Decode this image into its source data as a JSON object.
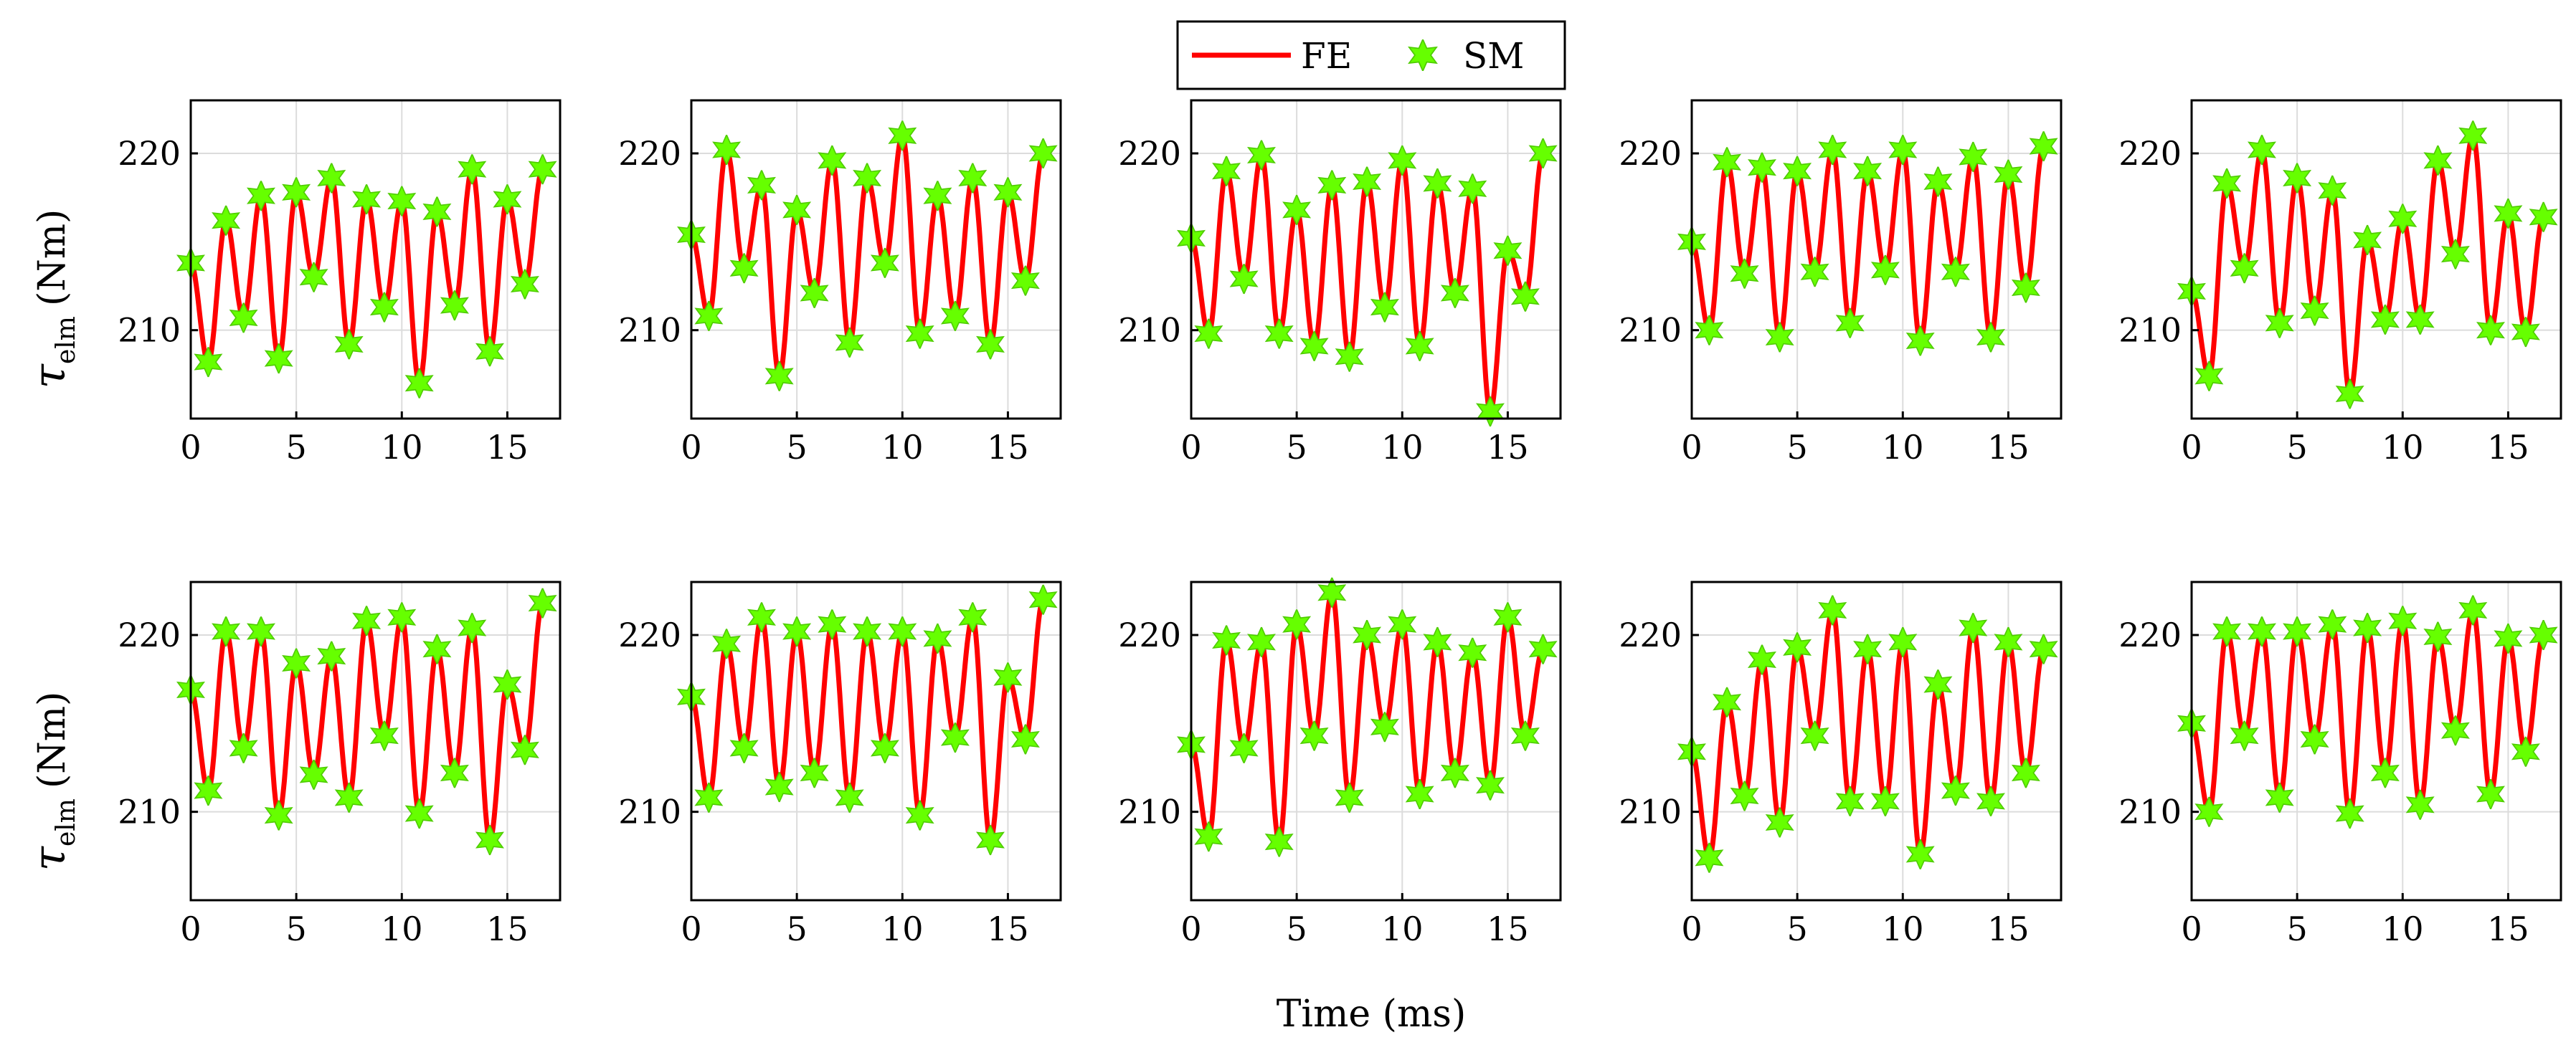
{
  "figure": {
    "xlabel": "Time (ms)",
    "ylabel_symbol": "τ",
    "ylabel_subscript": "elm",
    "ylabel_unit": "(Nm)",
    "legend": [
      {
        "label": "FE",
        "marker": "line",
        "color": "#ff0000"
      },
      {
        "label": "SM",
        "marker": "hexagram",
        "color": "#66ff00"
      }
    ],
    "colors": {
      "fe": "#ff0000",
      "sm": "#66ff00",
      "sm_edge": "#4fcc00",
      "grid": "#dcdcdc"
    }
  },
  "chart_data": [
    {
      "type": "line",
      "panel": "row1-col1",
      "xlim": [
        0,
        17.5
      ],
      "ylim": [
        205,
        223
      ],
      "xticks": [
        0,
        5,
        10,
        15
      ],
      "yticks": [
        210,
        220
      ],
      "grid": true,
      "x": [
        0,
        0.83,
        1.67,
        2.5,
        3.33,
        4.17,
        5,
        5.83,
        6.67,
        7.5,
        8.33,
        9.17,
        10,
        10.83,
        11.67,
        12.5,
        13.33,
        14.17,
        15,
        15.83,
        16.67
      ],
      "series": [
        {
          "name": "FE",
          "values": [
            213.8,
            208.2,
            216.2,
            210.7,
            217.6,
            208.4,
            217.8,
            213.0,
            218.6,
            209.2,
            217.4,
            211.3,
            217.3,
            207.0,
            216.7,
            211.4,
            219.1,
            208.8,
            217.4,
            212.6,
            219.1
          ]
        },
        {
          "name": "SM",
          "values": [
            213.8,
            208.2,
            216.2,
            210.7,
            217.6,
            208.4,
            217.8,
            213.0,
            218.6,
            209.2,
            217.4,
            211.3,
            217.3,
            207.0,
            216.7,
            211.4,
            219.1,
            208.8,
            217.4,
            212.6,
            219.1
          ]
        }
      ]
    },
    {
      "type": "line",
      "panel": "row1-col2",
      "xlim": [
        0,
        17.5
      ],
      "ylim": [
        205,
        223
      ],
      "xticks": [
        0,
        5,
        10,
        15
      ],
      "yticks": [
        210,
        220
      ],
      "grid": true,
      "x": [
        0,
        0.83,
        1.67,
        2.5,
        3.33,
        4.17,
        5,
        5.83,
        6.67,
        7.5,
        8.33,
        9.17,
        10,
        10.83,
        11.67,
        12.5,
        13.33,
        14.17,
        15,
        15.83,
        16.67
      ],
      "series": [
        {
          "name": "FE",
          "values": [
            215.4,
            210.8,
            220.2,
            213.5,
            218.2,
            207.4,
            216.8,
            212.1,
            219.6,
            209.3,
            218.6,
            213.8,
            221.0,
            209.8,
            217.6,
            210.8,
            218.6,
            209.2,
            217.8,
            212.8,
            220.0
          ]
        },
        {
          "name": "SM",
          "values": [
            215.4,
            210.8,
            220.2,
            213.5,
            218.2,
            207.4,
            216.8,
            212.1,
            219.6,
            209.3,
            218.6,
            213.8,
            221.0,
            209.8,
            217.6,
            210.8,
            218.6,
            209.2,
            217.8,
            212.8,
            220.0
          ]
        }
      ]
    },
    {
      "type": "line",
      "panel": "row1-col3",
      "xlim": [
        0,
        17.5
      ],
      "ylim": [
        205,
        223
      ],
      "xticks": [
        0,
        5,
        10,
        15
      ],
      "yticks": [
        210,
        220
      ],
      "grid": true,
      "x": [
        0,
        0.83,
        1.67,
        2.5,
        3.33,
        4.17,
        5,
        5.83,
        6.67,
        7.5,
        8.33,
        9.17,
        10,
        10.83,
        11.67,
        12.5,
        13.33,
        14.17,
        15,
        15.83,
        16.67
      ],
      "series": [
        {
          "name": "FE",
          "values": [
            215.2,
            209.8,
            219.0,
            212.9,
            219.9,
            209.8,
            216.8,
            209.1,
            218.2,
            208.5,
            218.4,
            211.3,
            219.6,
            209.1,
            218.3,
            212.1,
            218.0,
            205.4,
            214.5,
            211.9,
            220.0
          ]
        },
        {
          "name": "SM",
          "values": [
            215.2,
            209.8,
            219.0,
            212.9,
            219.9,
            209.8,
            216.8,
            209.1,
            218.2,
            208.5,
            218.4,
            211.3,
            219.6,
            209.1,
            218.3,
            212.1,
            218.0,
            205.4,
            214.5,
            211.9,
            220.0
          ]
        }
      ]
    },
    {
      "type": "line",
      "panel": "row1-col4",
      "xlim": [
        0,
        17.5
      ],
      "ylim": [
        205,
        223
      ],
      "xticks": [
        0,
        5,
        10,
        15
      ],
      "yticks": [
        210,
        220
      ],
      "grid": true,
      "x": [
        0,
        0.83,
        1.67,
        2.5,
        3.33,
        4.17,
        5,
        5.83,
        6.67,
        7.5,
        8.33,
        9.17,
        10,
        10.83,
        11.67,
        12.5,
        13.33,
        14.17,
        15,
        15.83,
        16.67
      ],
      "series": [
        {
          "name": "FE",
          "values": [
            215.0,
            210.0,
            219.5,
            213.2,
            219.2,
            209.6,
            219.0,
            213.3,
            220.2,
            210.4,
            219.0,
            213.4,
            220.2,
            209.4,
            218.4,
            213.3,
            219.8,
            209.6,
            218.8,
            212.4,
            220.4
          ]
        },
        {
          "name": "SM",
          "values": [
            215.0,
            210.0,
            219.5,
            213.2,
            219.2,
            209.6,
            219.0,
            213.3,
            220.2,
            210.4,
            219.0,
            213.4,
            220.2,
            209.4,
            218.4,
            213.3,
            219.8,
            209.6,
            218.8,
            212.4,
            220.4
          ]
        }
      ]
    },
    {
      "type": "line",
      "panel": "row1-col5",
      "xlim": [
        0,
        17.5
      ],
      "ylim": [
        205,
        223
      ],
      "xticks": [
        0,
        5,
        10,
        15
      ],
      "yticks": [
        210,
        220
      ],
      "grid": true,
      "x": [
        0,
        0.83,
        1.67,
        2.5,
        3.33,
        4.17,
        5,
        5.83,
        6.67,
        7.5,
        8.33,
        9.17,
        10,
        10.83,
        11.67,
        12.5,
        13.33,
        14.17,
        15,
        15.83,
        16.67
      ],
      "series": [
        {
          "name": "FE",
          "values": [
            212.2,
            207.4,
            218.3,
            213.5,
            220.2,
            210.4,
            218.6,
            211.1,
            217.9,
            206.4,
            215.1,
            210.6,
            216.3,
            210.6,
            219.6,
            214.3,
            221.0,
            210.0,
            216.6,
            209.9,
            216.4
          ]
        },
        {
          "name": "SM",
          "values": [
            212.2,
            207.4,
            218.3,
            213.5,
            220.2,
            210.4,
            218.6,
            211.1,
            217.9,
            206.4,
            215.1,
            210.6,
            216.3,
            210.6,
            219.6,
            214.3,
            221.0,
            210.0,
            216.6,
            209.9,
            216.4
          ]
        }
      ]
    },
    {
      "type": "line",
      "panel": "row2-col1",
      "xlim": [
        0,
        17.5
      ],
      "ylim": [
        205,
        223
      ],
      "xticks": [
        0,
        5,
        10,
        15
      ],
      "yticks": [
        210,
        220
      ],
      "grid": true,
      "x": [
        0,
        0.83,
        1.67,
        2.5,
        3.33,
        4.17,
        5,
        5.83,
        6.67,
        7.5,
        8.33,
        9.17,
        10,
        10.83,
        11.67,
        12.5,
        13.33,
        14.17,
        15,
        15.83,
        16.67
      ],
      "series": [
        {
          "name": "FE",
          "values": [
            216.9,
            211.2,
            220.2,
            213.6,
            220.2,
            209.8,
            218.4,
            212.1,
            218.8,
            210.8,
            220.8,
            214.3,
            221.0,
            209.9,
            219.2,
            212.2,
            220.4,
            208.4,
            217.2,
            213.5,
            221.8
          ]
        },
        {
          "name": "SM",
          "values": [
            216.9,
            211.2,
            220.2,
            213.6,
            220.2,
            209.8,
            218.4,
            212.1,
            218.8,
            210.8,
            220.8,
            214.3,
            221.0,
            209.9,
            219.2,
            212.2,
            220.4,
            208.4,
            217.2,
            213.5,
            221.8
          ]
        }
      ]
    },
    {
      "type": "line",
      "panel": "row2-col2",
      "xlim": [
        0,
        17.5
      ],
      "ylim": [
        205,
        223
      ],
      "xticks": [
        0,
        5,
        10,
        15
      ],
      "yticks": [
        210,
        220
      ],
      "grid": true,
      "x": [
        0,
        0.83,
        1.67,
        2.5,
        3.33,
        4.17,
        5,
        5.83,
        6.67,
        7.5,
        8.33,
        9.17,
        10,
        10.83,
        11.67,
        12.5,
        13.33,
        14.17,
        15,
        15.83,
        16.67
      ],
      "series": [
        {
          "name": "FE",
          "values": [
            216.5,
            210.8,
            219.5,
            213.6,
            221.0,
            211.4,
            220.2,
            212.2,
            220.6,
            210.8,
            220.2,
            213.6,
            220.2,
            209.8,
            219.8,
            214.2,
            221.0,
            208.4,
            217.6,
            214.1,
            222.0
          ]
        },
        {
          "name": "SM",
          "values": [
            216.5,
            210.8,
            219.5,
            213.6,
            221.0,
            211.4,
            220.2,
            212.2,
            220.6,
            210.8,
            220.2,
            213.6,
            220.2,
            209.8,
            219.8,
            214.2,
            221.0,
            208.4,
            217.6,
            214.1,
            222.0
          ]
        }
      ]
    },
    {
      "type": "line",
      "panel": "row2-col3",
      "xlim": [
        0,
        17.5
      ],
      "ylim": [
        205,
        223
      ],
      "xticks": [
        0,
        5,
        10,
        15
      ],
      "yticks": [
        210,
        220
      ],
      "grid": true,
      "x": [
        0,
        0.83,
        1.67,
        2.5,
        3.33,
        4.17,
        5,
        5.83,
        6.67,
        7.5,
        8.33,
        9.17,
        10,
        10.83,
        11.67,
        12.5,
        13.33,
        14.17,
        15,
        15.83,
        16.67
      ],
      "series": [
        {
          "name": "FE",
          "values": [
            213.8,
            208.6,
            219.7,
            213.6,
            219.6,
            208.3,
            220.6,
            214.3,
            222.4,
            210.8,
            220.0,
            214.8,
            220.6,
            211.0,
            219.6,
            212.2,
            219.0,
            211.5,
            221.0,
            214.3,
            219.2
          ]
        },
        {
          "name": "SM",
          "values": [
            213.8,
            208.6,
            219.7,
            213.6,
            219.6,
            208.3,
            220.6,
            214.3,
            222.4,
            210.8,
            220.0,
            214.8,
            220.6,
            211.0,
            219.6,
            212.2,
            219.0,
            211.5,
            221.0,
            214.3,
            219.2
          ]
        }
      ]
    },
    {
      "type": "line",
      "panel": "row2-col4",
      "xlim": [
        0,
        17.5
      ],
      "ylim": [
        205,
        223
      ],
      "xticks": [
        0,
        5,
        10,
        15
      ],
      "yticks": [
        210,
        220
      ],
      "grid": true,
      "x": [
        0,
        0.83,
        1.67,
        2.5,
        3.33,
        4.17,
        5,
        5.83,
        6.67,
        7.5,
        8.33,
        9.17,
        10,
        10.83,
        11.67,
        12.5,
        13.33,
        14.17,
        15,
        15.83,
        16.67
      ],
      "series": [
        {
          "name": "FE",
          "values": [
            213.4,
            207.4,
            216.2,
            210.9,
            218.6,
            209.4,
            219.3,
            214.3,
            221.4,
            210.6,
            219.2,
            210.6,
            219.6,
            207.6,
            217.2,
            211.2,
            220.4,
            210.6,
            219.6,
            212.2,
            219.2
          ]
        },
        {
          "name": "SM",
          "values": [
            213.4,
            207.4,
            216.2,
            210.9,
            218.6,
            209.4,
            219.3,
            214.3,
            221.4,
            210.6,
            219.2,
            210.6,
            219.6,
            207.6,
            217.2,
            211.2,
            220.4,
            210.6,
            219.6,
            212.2,
            219.2
          ]
        }
      ]
    },
    {
      "type": "line",
      "panel": "row2-col5",
      "xlim": [
        0,
        17.5
      ],
      "ylim": [
        205,
        223
      ],
      "xticks": [
        0,
        5,
        10,
        15
      ],
      "yticks": [
        210,
        220
      ],
      "grid": true,
      "x": [
        0,
        0.83,
        1.67,
        2.5,
        3.33,
        4.17,
        5,
        5.83,
        6.67,
        7.5,
        8.33,
        9.17,
        10,
        10.83,
        11.67,
        12.5,
        13.33,
        14.17,
        15,
        15.83,
        16.67
      ],
      "series": [
        {
          "name": "FE",
          "values": [
            215.0,
            210.0,
            220.2,
            214.3,
            220.2,
            210.8,
            220.2,
            214.1,
            220.6,
            209.9,
            220.4,
            212.2,
            220.8,
            210.4,
            219.9,
            214.6,
            221.4,
            211.0,
            219.8,
            213.4,
            220.0
          ]
        },
        {
          "name": "SM",
          "values": [
            215.0,
            210.0,
            220.2,
            214.3,
            220.2,
            210.8,
            220.2,
            214.1,
            220.6,
            209.9,
            220.4,
            212.2,
            220.8,
            210.4,
            219.9,
            214.6,
            221.4,
            211.0,
            219.8,
            213.4,
            220.0
          ]
        }
      ]
    }
  ]
}
